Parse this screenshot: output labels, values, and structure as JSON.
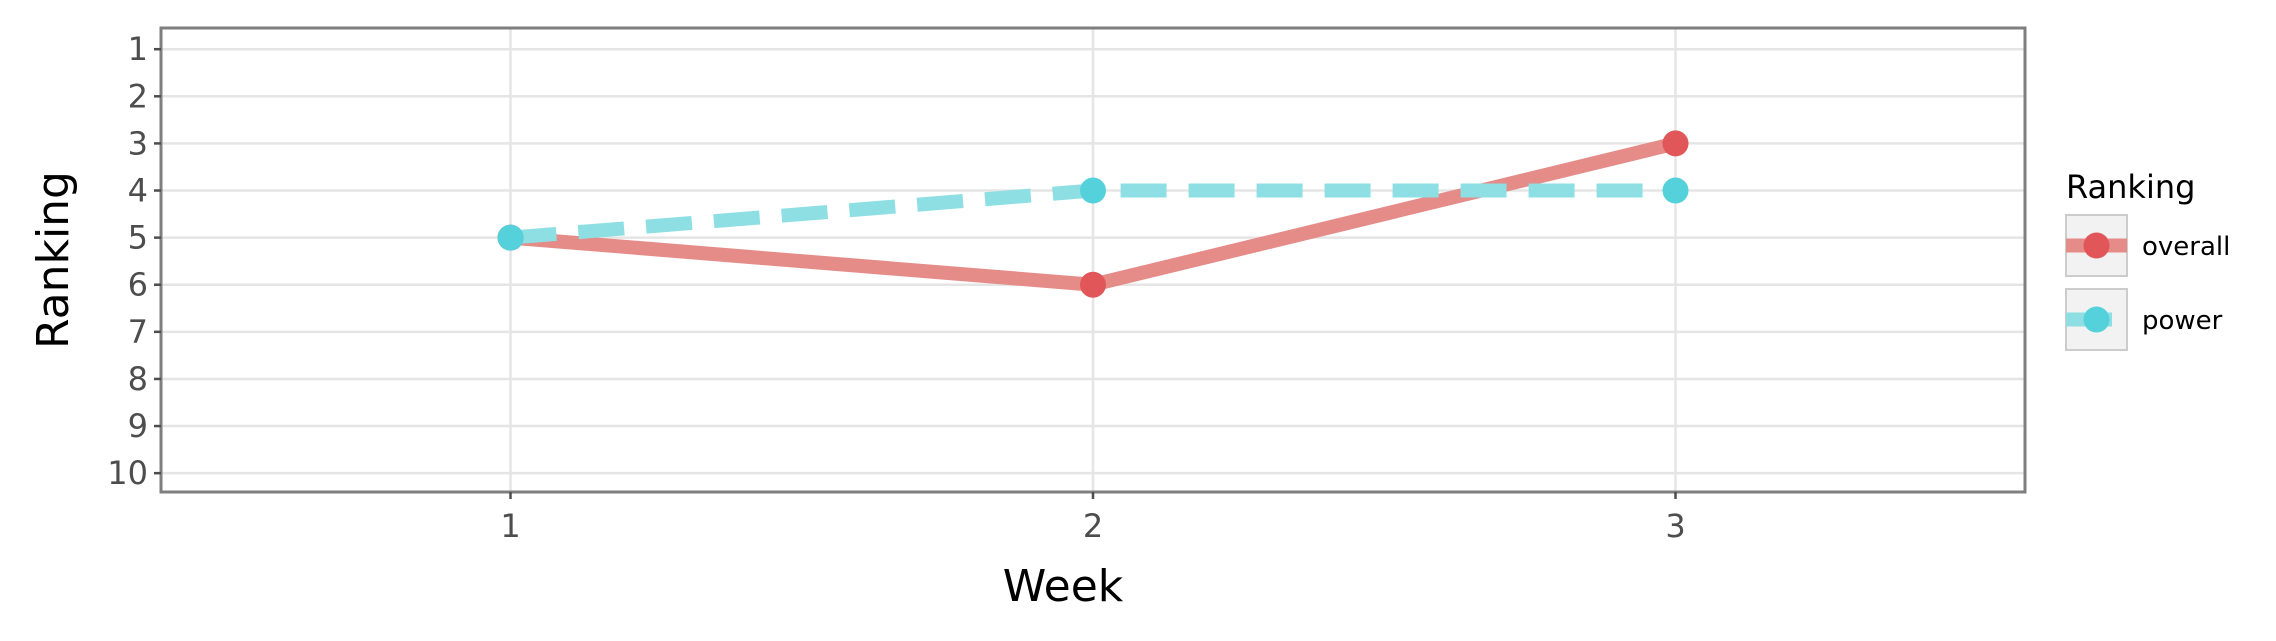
{
  "chart_data": {
    "type": "line",
    "x": [
      1,
      2,
      3
    ],
    "xlabel": "Week",
    "ylabel": "Ranking",
    "x_ticks": [
      "1",
      "2",
      "3"
    ],
    "y_ticks": [
      "1",
      "2",
      "3",
      "4",
      "5",
      "6",
      "7",
      "8",
      "9",
      "10"
    ],
    "xlim": [
      0.4,
      3.6
    ],
    "ylim": [
      10.4,
      0.55
    ],
    "y_reversed": true,
    "grid": true,
    "legend_title": "Ranking",
    "legend_position": "right",
    "series": [
      {
        "name": "overall",
        "values": [
          5,
          6,
          3
        ],
        "color": "#e15759",
        "line_color": "#e58b88",
        "line_style": "solid"
      },
      {
        "name": "power",
        "values": [
          5,
          4,
          4
        ],
        "color": "#55d1db",
        "line_color": "#8ddfe4",
        "line_style": "dashed"
      }
    ]
  }
}
